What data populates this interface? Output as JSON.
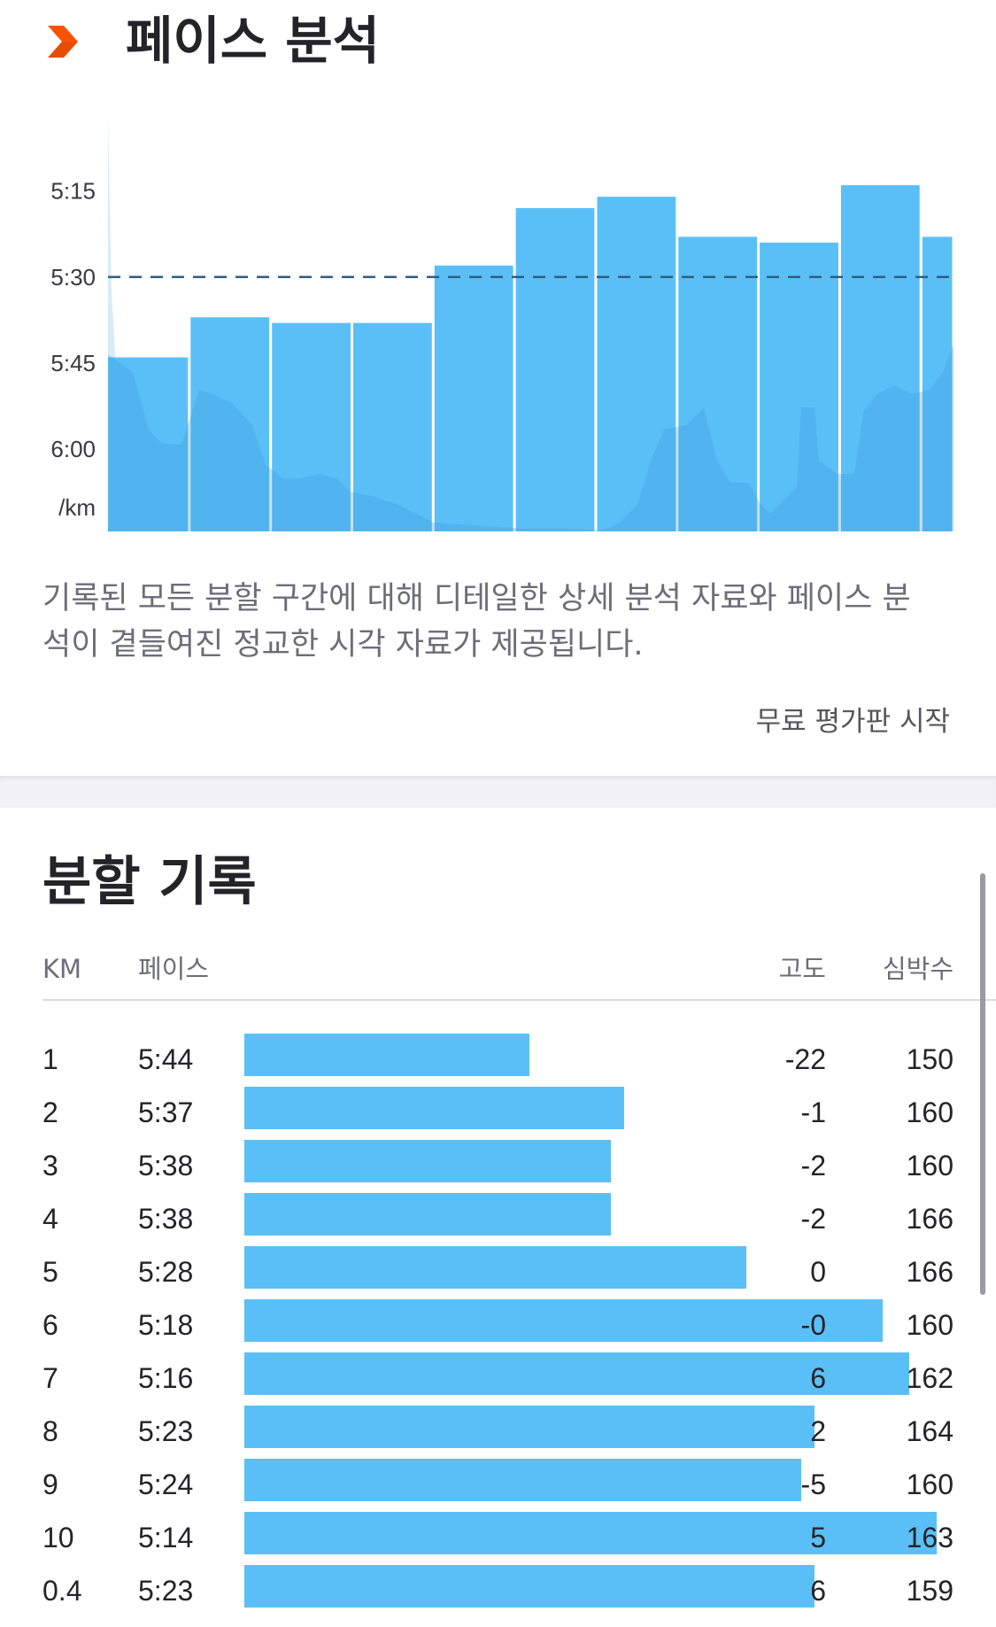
{
  "pace_analysis": {
    "title": "페이스 분석",
    "icon": "double-chevron-icon",
    "accent_color": "#fc5200",
    "description": "기록된 모든 분할 구간에 대해 디테일한 상세 분석 자료와 페이스 분석이 곁들여진 정교한 시각 자료가 제공됩니다.",
    "trial_link": "무료 평가판 시작"
  },
  "chart_data": {
    "type": "bar",
    "title": "",
    "xlabel": "",
    "ylabel": "/km",
    "y_ticks": [
      "5:15",
      "5:30",
      "5:45",
      "6:00"
    ],
    "y_unit_label": "/km",
    "y_axis_inverted": true,
    "y_tick_seconds": [
      315,
      330,
      345,
      360
    ],
    "ylim_seconds": [
      375,
      305
    ],
    "categories": [
      "1",
      "2",
      "3",
      "4",
      "5",
      "6",
      "7",
      "8",
      "9",
      "10",
      "0.4"
    ],
    "distance_km": [
      1,
      1,
      1,
      1,
      1,
      1,
      1,
      1,
      1,
      1,
      0.4
    ],
    "values_seconds": [
      344,
      337,
      338,
      338,
      328,
      318,
      316,
      323,
      324,
      314,
      323
    ],
    "average_line_seconds": 330,
    "average_line_style": "dashed",
    "bar_color": "#5bbff7",
    "grid": false,
    "legend": "none"
  },
  "splits": {
    "title": "분할 기록",
    "columns": {
      "km": "KM",
      "pace": "페이스",
      "elevation": "고도",
      "heart_rate": "심박수"
    },
    "bar_color": "#5bbff7",
    "rows": [
      {
        "km": "1",
        "pace": "5:44",
        "elevation": "-22",
        "heart_rate": "150",
        "pace_seconds": 344
      },
      {
        "km": "2",
        "pace": "5:37",
        "elevation": "-1",
        "heart_rate": "160",
        "pace_seconds": 337
      },
      {
        "km": "3",
        "pace": "5:38",
        "elevation": "-2",
        "heart_rate": "160",
        "pace_seconds": 338
      },
      {
        "km": "4",
        "pace": "5:38",
        "elevation": "-2",
        "heart_rate": "166",
        "pace_seconds": 338
      },
      {
        "km": "5",
        "pace": "5:28",
        "elevation": "0",
        "heart_rate": "166",
        "pace_seconds": 328
      },
      {
        "km": "6",
        "pace": "5:18",
        "elevation": "-0",
        "heart_rate": "160",
        "pace_seconds": 318
      },
      {
        "km": "7",
        "pace": "5:16",
        "elevation": "6",
        "heart_rate": "162",
        "pace_seconds": 316
      },
      {
        "km": "8",
        "pace": "5:23",
        "elevation": "2",
        "heart_rate": "164",
        "pace_seconds": 323
      },
      {
        "km": "9",
        "pace": "5:24",
        "elevation": "-5",
        "heart_rate": "160",
        "pace_seconds": 324
      },
      {
        "km": "10",
        "pace": "5:14",
        "elevation": "5",
        "heart_rate": "163",
        "pace_seconds": 314
      },
      {
        "km": "0.4",
        "pace": "5:23",
        "elevation": "6",
        "heart_rate": "159",
        "pace_seconds": 323
      }
    ]
  }
}
